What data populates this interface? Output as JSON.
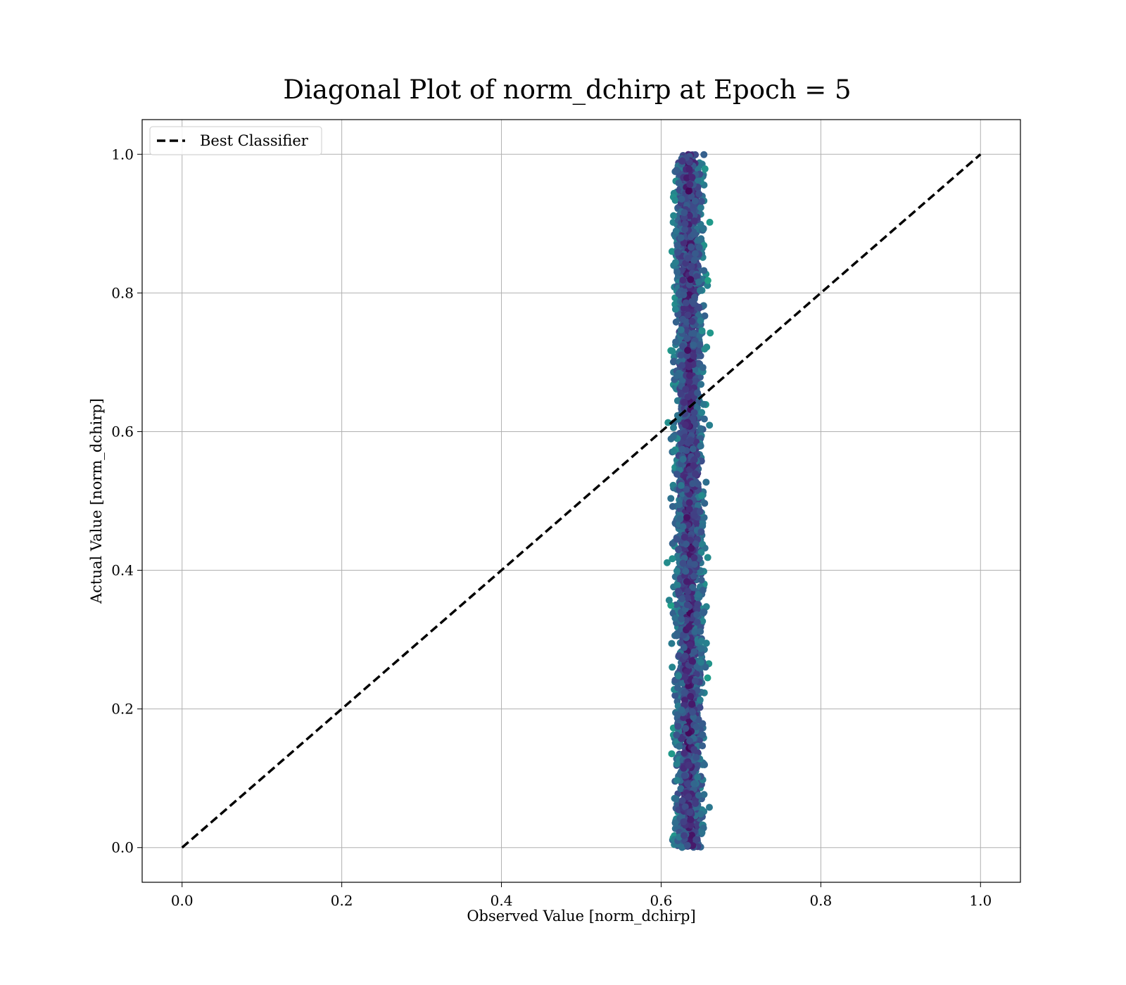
{
  "chart_data": {
    "type": "scatter",
    "title": "Diagonal Plot of norm_dchirp at Epoch = 5",
    "xlabel": "Observed Value [norm_dchirp]",
    "ylabel": "Actual Value [norm_dchirp]",
    "xlim": [
      -0.05,
      1.05
    ],
    "ylim": [
      -0.05,
      1.05
    ],
    "x_ticks": [
      "0.0",
      "0.2",
      "0.4",
      "0.6",
      "0.8",
      "1.0"
    ],
    "y_ticks": [
      "0.0",
      "0.2",
      "0.4",
      "0.6",
      "0.8",
      "1.0"
    ],
    "grid": true,
    "legend": {
      "placement": "top-left",
      "entries": [
        "Best Classifier"
      ]
    },
    "series": [
      {
        "name": "Best Classifier",
        "kind": "line",
        "style": "dashed",
        "color": "#000000",
        "x": [
          0.0,
          1.0
        ],
        "y": [
          0.0,
          1.0
        ]
      },
      {
        "kind": "scatter",
        "colormap": "viridis",
        "x_range": [
          0.605,
          0.69
        ],
        "x_center": 0.635,
        "y_range": [
          0.0,
          1.0
        ],
        "approx_point_count": 3000
      }
    ]
  }
}
